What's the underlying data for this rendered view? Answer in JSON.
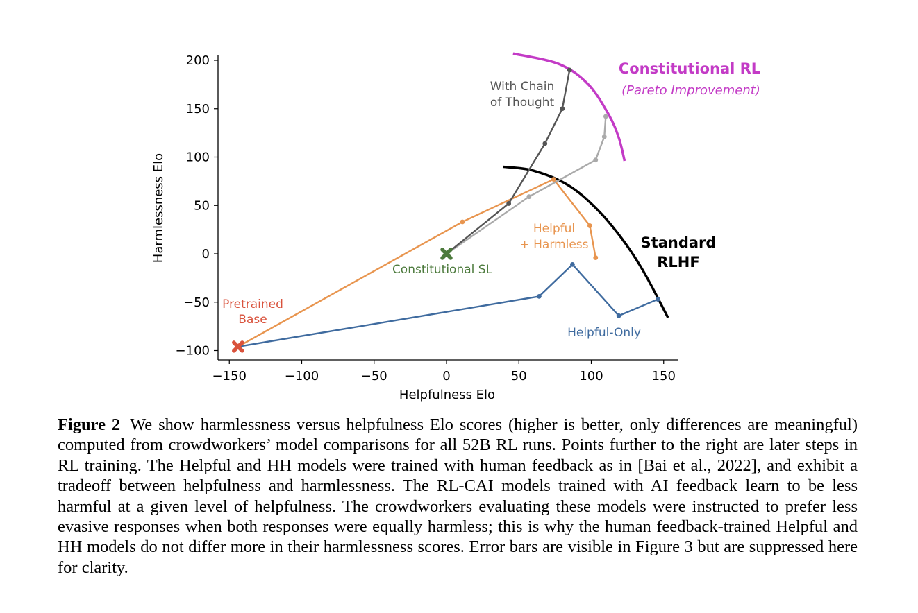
{
  "chart_data": {
    "type": "line",
    "xlabel": "Helpfulness Elo",
    "ylabel": "Harmlessness Elo",
    "xlim": [
      -160,
      160
    ],
    "ylim": [
      -110,
      205
    ],
    "x_ticks": [
      -150,
      -100,
      -50,
      0,
      50,
      100,
      150
    ],
    "x_tick_labels": [
      "−150",
      "−100",
      "−50",
      "0",
      "50",
      "100",
      "150"
    ],
    "y_ticks": [
      -100,
      -50,
      0,
      50,
      100,
      150,
      200
    ],
    "y_tick_labels": [
      "−100",
      "−50",
      "0",
      "50",
      "100",
      "150",
      "200"
    ],
    "grid": false,
    "series": [
      {
        "name": "Helpful-Only",
        "color": "#3f6b9f",
        "x": [
          -144,
          64,
          87,
          119,
          146
        ],
        "y": [
          -96,
          -44,
          -11,
          -64,
          -47
        ]
      },
      {
        "name": "Helpful + Harmless",
        "color": "#e8954f",
        "x": [
          -144,
          11,
          74,
          99,
          103
        ],
        "y": [
          -96,
          33,
          77,
          29,
          -4
        ]
      },
      {
        "name": "Constitutional RL",
        "color": "#aaaaaa",
        "x": [
          0,
          57,
          103,
          109,
          110
        ],
        "y": [
          0,
          59,
          97,
          121,
          142
        ]
      },
      {
        "name": "With Chain of Thought",
        "color": "#555555",
        "x": [
          0,
          43,
          68,
          80,
          85
        ],
        "y": [
          0,
          52,
          114,
          150,
          190
        ]
      }
    ],
    "markers": [
      {
        "name": "Pretrained Base",
        "x": -144,
        "y": -96,
        "color": "#d9523c"
      },
      {
        "name": "Constitutional SL",
        "x": 0,
        "y": 0,
        "color": "#4c7a3c"
      }
    ],
    "frontiers": [
      {
        "name": "Constitutional RL frontier",
        "color": "#c33bc6",
        "x": [
          46,
          78,
          98,
          112,
          119,
          123
        ],
        "y": [
          207,
          196,
          175,
          144,
          120,
          96
        ]
      },
      {
        "name": "Standard RLHF frontier",
        "color": "#000000",
        "x": [
          39,
          60,
          84,
          104,
          121,
          136,
          153
        ],
        "y": [
          90,
          86,
          71,
          46,
          16,
          -18,
          -66
        ]
      }
    ],
    "annotations": {
      "cot_line1": "With Chain",
      "cot_line2": "of Thought",
      "crl_title": "Constitutional RL",
      "crl_subtitle": "(Pareto Improvement)",
      "hh_line1": "Helpful",
      "hh_line2": "+ Harmless",
      "csl": "Constitutional SL",
      "pb_line1": "Pretrained",
      "pb_line2": "Base",
      "rlhf_line1": "Standard",
      "rlhf_line2": "RLHF",
      "helpful_only": "Helpful-Only"
    }
  },
  "caption": {
    "label": "Figure 2",
    "text": "We show harmlessness versus helpfulness Elo scores (higher is better, only differences are meaningful) computed from crowdworkers’ model comparisons for all 52B RL runs. Points further to the right are later steps in RL training. The Helpful and HH models were trained with human feedback as in [Bai et al., 2022], and exhibit a tradeoff between helpfulness and harmlessness. The RL-CAI models trained with AI feedback learn to be less harmful at a given level of helpfulness. The crowdworkers evaluating these models were instructed to prefer less evasive responses when both responses were equally harmless; this is why the human feedback-trained Helpful and HH models do not differ more in their harmlessness scores. Error bars are visible in Figure 3 but are suppressed here for clarity."
  }
}
